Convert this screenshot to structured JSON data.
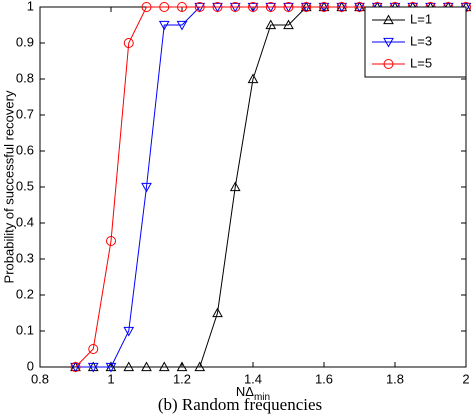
{
  "chart_data": {
    "type": "line",
    "caption": "(b) Random frequencies",
    "x_label": {
      "main": "NΔ",
      "sub": "min"
    },
    "y_label": "Probability of successful recovery",
    "x": [
      0.9,
      0.95,
      1.0,
      1.05,
      1.1,
      1.15,
      1.2,
      1.25,
      1.3,
      1.35,
      1.4,
      1.45,
      1.5,
      1.55,
      1.6,
      1.65,
      1.7,
      1.75,
      1.8,
      1.85,
      1.9,
      1.95,
      2.0
    ],
    "series": [
      {
        "name": "L=1",
        "color": "#000000",
        "marker": "triangle-up",
        "values": [
          0,
          0,
          0,
          0,
          0,
          0,
          0,
          0,
          0.15,
          0.5,
          0.8,
          0.95,
          0.95,
          1,
          1,
          1,
          1,
          1,
          1,
          1,
          1,
          1,
          1
        ]
      },
      {
        "name": "L=3",
        "color": "#0000ff",
        "marker": "triangle-down",
        "values": [
          0,
          0,
          0,
          0.1,
          0.5,
          0.95,
          0.95,
          1,
          1,
          1,
          1,
          1,
          1,
          1,
          1,
          1,
          1,
          1,
          1,
          1,
          1,
          1,
          1
        ]
      },
      {
        "name": "L=5",
        "color": "#ff0000",
        "marker": "circle",
        "values": [
          0,
          0.05,
          0.35,
          0.9,
          1,
          1,
          1,
          1,
          1,
          1,
          1,
          1,
          1,
          1,
          1,
          1,
          1,
          1,
          1,
          1,
          1,
          1,
          1
        ]
      }
    ],
    "xlim": [
      0.8,
      2
    ],
    "ylim": [
      0,
      1
    ],
    "xticks": [
      0.8,
      1,
      1.2,
      1.4,
      1.6,
      1.8,
      2
    ],
    "yticks": [
      0,
      0.1,
      0.2,
      0.3,
      0.4,
      0.5,
      0.6,
      0.7,
      0.8,
      0.9,
      1
    ],
    "legend": "top-right"
  }
}
